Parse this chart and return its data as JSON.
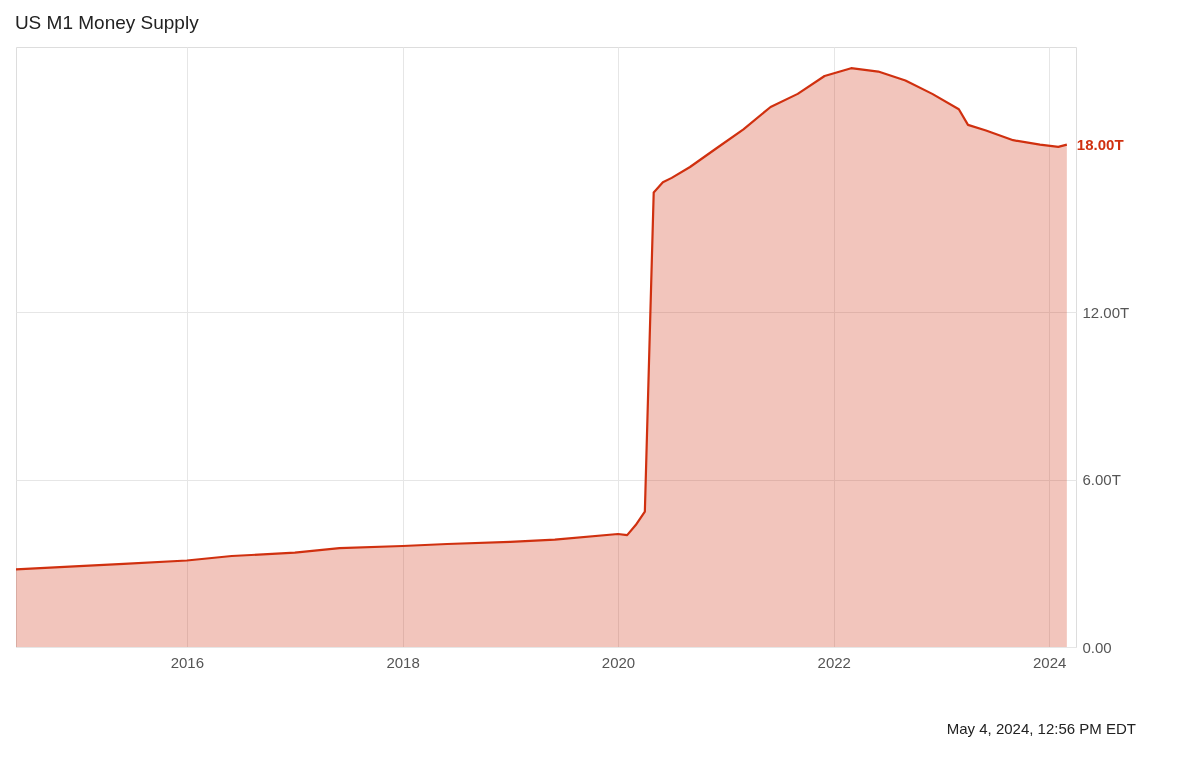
{
  "chart_data": {
    "type": "area",
    "title": "US M1 Money Supply",
    "x": [
      "2014-06",
      "2015-01",
      "2015-06",
      "2016-01",
      "2016-06",
      "2017-01",
      "2017-06",
      "2018-01",
      "2018-06",
      "2019-01",
      "2019-06",
      "2020-01",
      "2020-02",
      "2020-03",
      "2020-04",
      "2020-05",
      "2020-06",
      "2020-07",
      "2020-09",
      "2020-12",
      "2021-03",
      "2021-06",
      "2021-09",
      "2021-12",
      "2022-03",
      "2022-06",
      "2022-09",
      "2022-12",
      "2023-03",
      "2023-04",
      "2023-06",
      "2023-09",
      "2023-12",
      "2024-02",
      "2024-03"
    ],
    "series": [
      {
        "color": "#d0300f",
        "values": [
          2.78,
          2.9,
          2.98,
          3.1,
          3.26,
          3.38,
          3.54,
          3.62,
          3.69,
          3.77,
          3.85,
          4.05,
          4.01,
          4.37,
          4.85,
          16.29,
          16.65,
          16.81,
          17.2,
          17.88,
          18.55,
          19.35,
          19.82,
          20.46,
          20.74,
          20.62,
          20.3,
          19.82,
          19.27,
          18.71,
          18.51,
          18.16,
          18.0,
          17.92,
          18.0
        ]
      }
    ],
    "xlim": [
      "2014-06",
      "2024-04"
    ],
    "xticks": [
      "2016",
      "2018",
      "2020",
      "2022",
      "2024"
    ],
    "ylim": [
      0,
      21.5
    ],
    "yticks": [
      {
        "value": 0,
        "label": "0.00"
      },
      {
        "value": 6,
        "label": "6.00T"
      },
      {
        "value": 12,
        "label": "12.00T"
      }
    ],
    "grid": true,
    "annotations": [
      {
        "text": "18.00T",
        "x": "2024-03",
        "y": 18.0
      },
      "May 4, 2024, 12:56 PM EDT"
    ]
  }
}
